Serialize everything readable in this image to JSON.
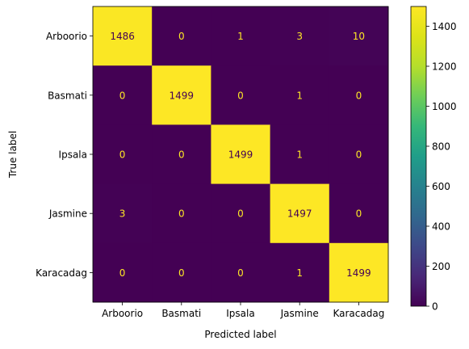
{
  "chart_data": {
    "type": "heatmap",
    "title": "",
    "xlabel": "Predicted label",
    "ylabel": "True label",
    "x_categories": [
      "Arboorio",
      "Basmati",
      "Ipsala",
      "Jasmine",
      "Karacadag"
    ],
    "y_categories": [
      "Arboorio",
      "Basmati",
      "Ipsala",
      "Jasmine",
      "Karacadag"
    ],
    "values": [
      [
        1486,
        0,
        1,
        3,
        10
      ],
      [
        0,
        1499,
        0,
        1,
        0
      ],
      [
        0,
        0,
        1499,
        1,
        0
      ],
      [
        3,
        0,
        0,
        1497,
        0
      ],
      [
        0,
        0,
        0,
        1,
        1499
      ]
    ],
    "colormap": "viridis",
    "colorbar": {
      "range": [
        0,
        1499
      ],
      "ticks": [
        0,
        200,
        400,
        600,
        800,
        1000,
        1200,
        1400
      ]
    },
    "colors": {
      "low": "#440154",
      "high": "#fde725",
      "text_on_low": "#fde725",
      "text_on_high": "#440154"
    }
  }
}
